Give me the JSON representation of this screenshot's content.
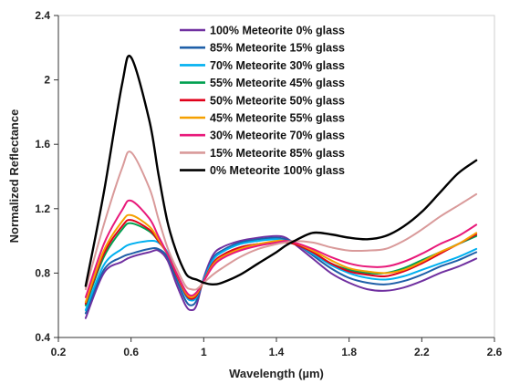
{
  "chart_data": {
    "type": "line",
    "title": "",
    "xlabel": "Wavelength (µm)",
    "ylabel": "Normalized Reflectance",
    "xlim": [
      0.2,
      2.6
    ],
    "ylim": [
      0.4,
      2.4
    ],
    "xticks": [
      0.2,
      0.6,
      1.0,
      1.4,
      1.8,
      2.2,
      2.6
    ],
    "yticks": [
      0.4,
      0.8,
      1.2,
      1.6,
      2.0,
      2.4
    ],
    "xtick_labels": [
      "0.2",
      "0.6",
      "1",
      "1.4",
      "1.8",
      "2.2",
      "2.6"
    ],
    "ytick_labels": [
      "0.4",
      "0.8",
      "1.2",
      "1.6",
      "2",
      "2.4"
    ],
    "grid": false,
    "legend_position": "top-center",
    "x": [
      0.35,
      0.45,
      0.55,
      0.6,
      0.7,
      0.75,
      0.8,
      0.85,
      0.9,
      0.93,
      0.96,
      1.0,
      1.05,
      1.1,
      1.2,
      1.3,
      1.4,
      1.45,
      1.5,
      1.6,
      1.7,
      1.8,
      1.9,
      2.0,
      2.1,
      2.2,
      2.3,
      2.4,
      2.5
    ],
    "series": [
      {
        "name": "100% Meteorite 0% glass",
        "color": "#7030a0",
        "values": [
          0.52,
          0.8,
          0.87,
          0.9,
          0.93,
          0.94,
          0.88,
          0.73,
          0.6,
          0.57,
          0.6,
          0.77,
          0.91,
          0.96,
          1.0,
          1.02,
          1.03,
          1.02,
          0.98,
          0.89,
          0.8,
          0.74,
          0.7,
          0.69,
          0.71,
          0.75,
          0.8,
          0.84,
          0.89
        ]
      },
      {
        "name": "85% Meteorite 15% glass",
        "color": "#1f5fa8",
        "values": [
          0.55,
          0.82,
          0.9,
          0.92,
          0.95,
          0.95,
          0.9,
          0.76,
          0.63,
          0.6,
          0.63,
          0.76,
          0.89,
          0.94,
          0.99,
          1.01,
          1.02,
          1.01,
          0.99,
          0.91,
          0.83,
          0.77,
          0.74,
          0.73,
          0.75,
          0.79,
          0.84,
          0.88,
          0.93
        ]
      },
      {
        "name": "70% Meteorite 30% glass",
        "color": "#00b0f0",
        "values": [
          0.57,
          0.85,
          0.95,
          0.98,
          1.0,
          0.99,
          0.93,
          0.79,
          0.66,
          0.63,
          0.65,
          0.76,
          0.88,
          0.93,
          0.98,
          1.0,
          1.01,
          1.0,
          0.99,
          0.92,
          0.85,
          0.8,
          0.77,
          0.76,
          0.78,
          0.82,
          0.86,
          0.9,
          0.95
        ]
      },
      {
        "name": "55% Meteorite 45% glass",
        "color": "#00a050",
        "values": [
          0.6,
          0.9,
          1.07,
          1.11,
          1.06,
          1.0,
          0.92,
          0.79,
          0.67,
          0.64,
          0.66,
          0.75,
          0.86,
          0.91,
          0.96,
          0.98,
          0.99,
          0.99,
          0.98,
          0.93,
          0.86,
          0.82,
          0.8,
          0.8,
          0.83,
          0.88,
          0.93,
          0.98,
          1.03
        ]
      },
      {
        "name": "50% Meteorite 50% glass",
        "color": "#e0001a",
        "values": [
          0.61,
          0.92,
          1.09,
          1.13,
          1.07,
          1.0,
          0.92,
          0.79,
          0.67,
          0.64,
          0.66,
          0.75,
          0.86,
          0.91,
          0.96,
          0.98,
          0.99,
          0.99,
          0.98,
          0.93,
          0.86,
          0.81,
          0.79,
          0.78,
          0.81,
          0.86,
          0.92,
          0.98,
          1.04
        ]
      },
      {
        "name": "45% Meteorite 55% glass",
        "color": "#f5a000",
        "values": [
          0.62,
          0.94,
          1.12,
          1.16,
          1.09,
          1.01,
          0.92,
          0.8,
          0.68,
          0.65,
          0.67,
          0.75,
          0.85,
          0.9,
          0.95,
          0.98,
          1.0,
          1.0,
          0.99,
          0.94,
          0.88,
          0.83,
          0.81,
          0.8,
          0.82,
          0.87,
          0.93,
          0.98,
          1.05
        ]
      },
      {
        "name": "30% Meteorite 70% glass",
        "color": "#e8197a",
        "values": [
          0.65,
          0.98,
          1.19,
          1.25,
          1.14,
          1.03,
          0.92,
          0.8,
          0.69,
          0.66,
          0.68,
          0.75,
          0.84,
          0.89,
          0.94,
          0.97,
          0.99,
          1.0,
          0.99,
          0.95,
          0.9,
          0.86,
          0.84,
          0.84,
          0.87,
          0.92,
          0.98,
          1.03,
          1.1
        ]
      },
      {
        "name": "15% Meteorite 85% glass",
        "color": "#d99a9a",
        "values": [
          0.7,
          1.1,
          1.45,
          1.55,
          1.33,
          1.14,
          0.96,
          0.83,
          0.72,
          0.7,
          0.7,
          0.74,
          0.79,
          0.83,
          0.9,
          0.95,
          0.98,
          0.99,
          1.0,
          0.99,
          0.96,
          0.94,
          0.94,
          0.95,
          1.0,
          1.07,
          1.15,
          1.22,
          1.29
        ]
      },
      {
        "name": "0% Meteorite 100% glass",
        "color": "#000000",
        "values": [
          0.72,
          1.3,
          1.97,
          2.14,
          1.75,
          1.42,
          1.12,
          0.93,
          0.8,
          0.77,
          0.76,
          0.74,
          0.73,
          0.74,
          0.79,
          0.86,
          0.93,
          0.97,
          1.0,
          1.05,
          1.04,
          1.02,
          1.01,
          1.03,
          1.09,
          1.18,
          1.3,
          1.42,
          1.5
        ]
      }
    ]
  }
}
